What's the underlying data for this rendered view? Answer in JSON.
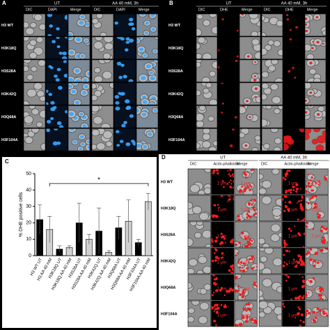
{
  "panel_a": {
    "label": "A",
    "groups": [
      "UT",
      "AA 40 mM, 3h"
    ],
    "columns": [
      "DIC",
      "DAPI",
      "Merge"
    ],
    "rows": [
      "H3 WT",
      "H3K18Q",
      "H3S28A",
      "H3K42Q",
      "H3Q68A",
      "H3F104A"
    ]
  },
  "panel_b": {
    "label": "B",
    "groups": [
      "UT",
      "AA 40 mM, 3h"
    ],
    "columns": [
      "DIC",
      "DHE",
      "Merge"
    ],
    "rows": [
      "H3 WT",
      "H3K18Q",
      "H3S28A",
      "H3K42Q",
      "H3Q68A",
      "H3F104A"
    ]
  },
  "chart_data": {
    "type": "bar",
    "panel_label": "C",
    "ylabel": "% DHE positive cells",
    "categories": [
      "H3 WT UT",
      "H3 AA 40 mM",
      "H3K18Q UT",
      "H3K18Q AA 40 mM",
      "H3S28A UT",
      "H3S28A AA 40 mM",
      "H3K42Q UT",
      "H3K42Q AA 40 mM",
      "H3Q68A UT",
      "H3Q68A AA 40 mM",
      "H3F104A UT",
      "H3F104A AA 40 mM"
    ],
    "values": [
      22,
      16,
      4,
      5,
      20,
      10,
      15,
      2,
      17,
      21,
      8,
      33
    ],
    "errors": [
      9,
      8,
      2,
      1,
      12,
      3,
      14,
      1,
      7,
      13,
      2,
      5
    ],
    "colors": [
      "#000000",
      "#d0d0d0",
      "#000000",
      "#d0d0d0",
      "#000000",
      "#d0d0d0",
      "#000000",
      "#d0d0d0",
      "#000000",
      "#d0d0d0",
      "#000000",
      "#d0d0d0"
    ],
    "ylim": [
      0,
      50
    ],
    "yticks": [
      0,
      10,
      20,
      30,
      40,
      50
    ],
    "annotation": {
      "text": "*",
      "from": 1,
      "to": 11,
      "y": 44
    }
  },
  "panel_d": {
    "label": "D",
    "groups": [
      "UT",
      "AA 40 mM, 3h"
    ],
    "columns": [
      "DIC",
      "Actin-phalloidin",
      "Merge"
    ],
    "rows": [
      "H3 WT",
      "H3K18Q",
      "H3S28A",
      "H3K42Q",
      "H3Q68A",
      "H3F104A"
    ],
    "scale": "1 µm"
  }
}
